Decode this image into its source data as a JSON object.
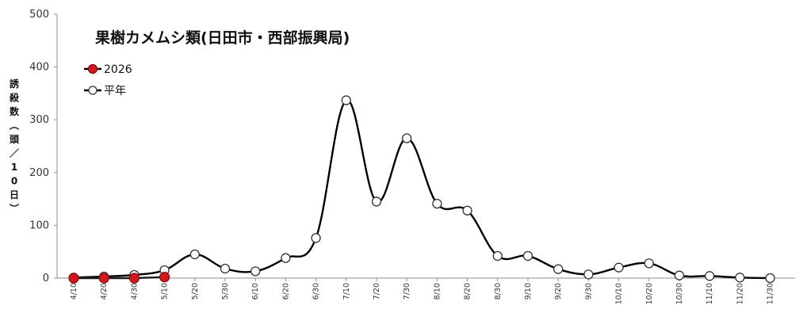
{
  "chart_data": {
    "type": "line",
    "title": "果樹カメムシ類(日田市・西部振興局)",
    "ylabel": "誘殺数(頭/10日)",
    "xlabel": "",
    "ylim": [
      0,
      500
    ],
    "yticks": [
      0,
      100,
      200,
      300,
      400,
      500
    ],
    "grid": false,
    "legend_position": "top-left",
    "categories": [
      "4/10",
      "4/20",
      "4/30",
      "5/10",
      "5/20",
      "5/30",
      "6/10",
      "6/20",
      "6/30",
      "7/10",
      "7/20",
      "7/30",
      "8/10",
      "8/20",
      "8/30",
      "9/10",
      "9/20",
      "9/30",
      "10/10",
      "10/20",
      "10/30",
      "11/10",
      "11/20",
      "11/30"
    ],
    "series": [
      {
        "name": "2026",
        "color": "#d0191f",
        "marker": "filled-circle",
        "values": [
          0,
          0,
          0,
          2,
          null,
          null,
          null,
          null,
          null,
          null,
          null,
          null,
          null,
          null,
          null,
          null,
          null,
          null,
          null,
          null,
          null,
          null,
          null,
          null
        ]
      },
      {
        "name": "平年",
        "color": "#000000",
        "marker": "open-circle",
        "values": [
          1,
          3,
          6,
          15,
          45,
          18,
          13,
          38,
          76,
          337,
          145,
          265,
          141,
          128,
          42,
          42,
          17,
          7,
          20,
          28,
          5,
          4,
          1,
          0
        ]
      }
    ]
  }
}
